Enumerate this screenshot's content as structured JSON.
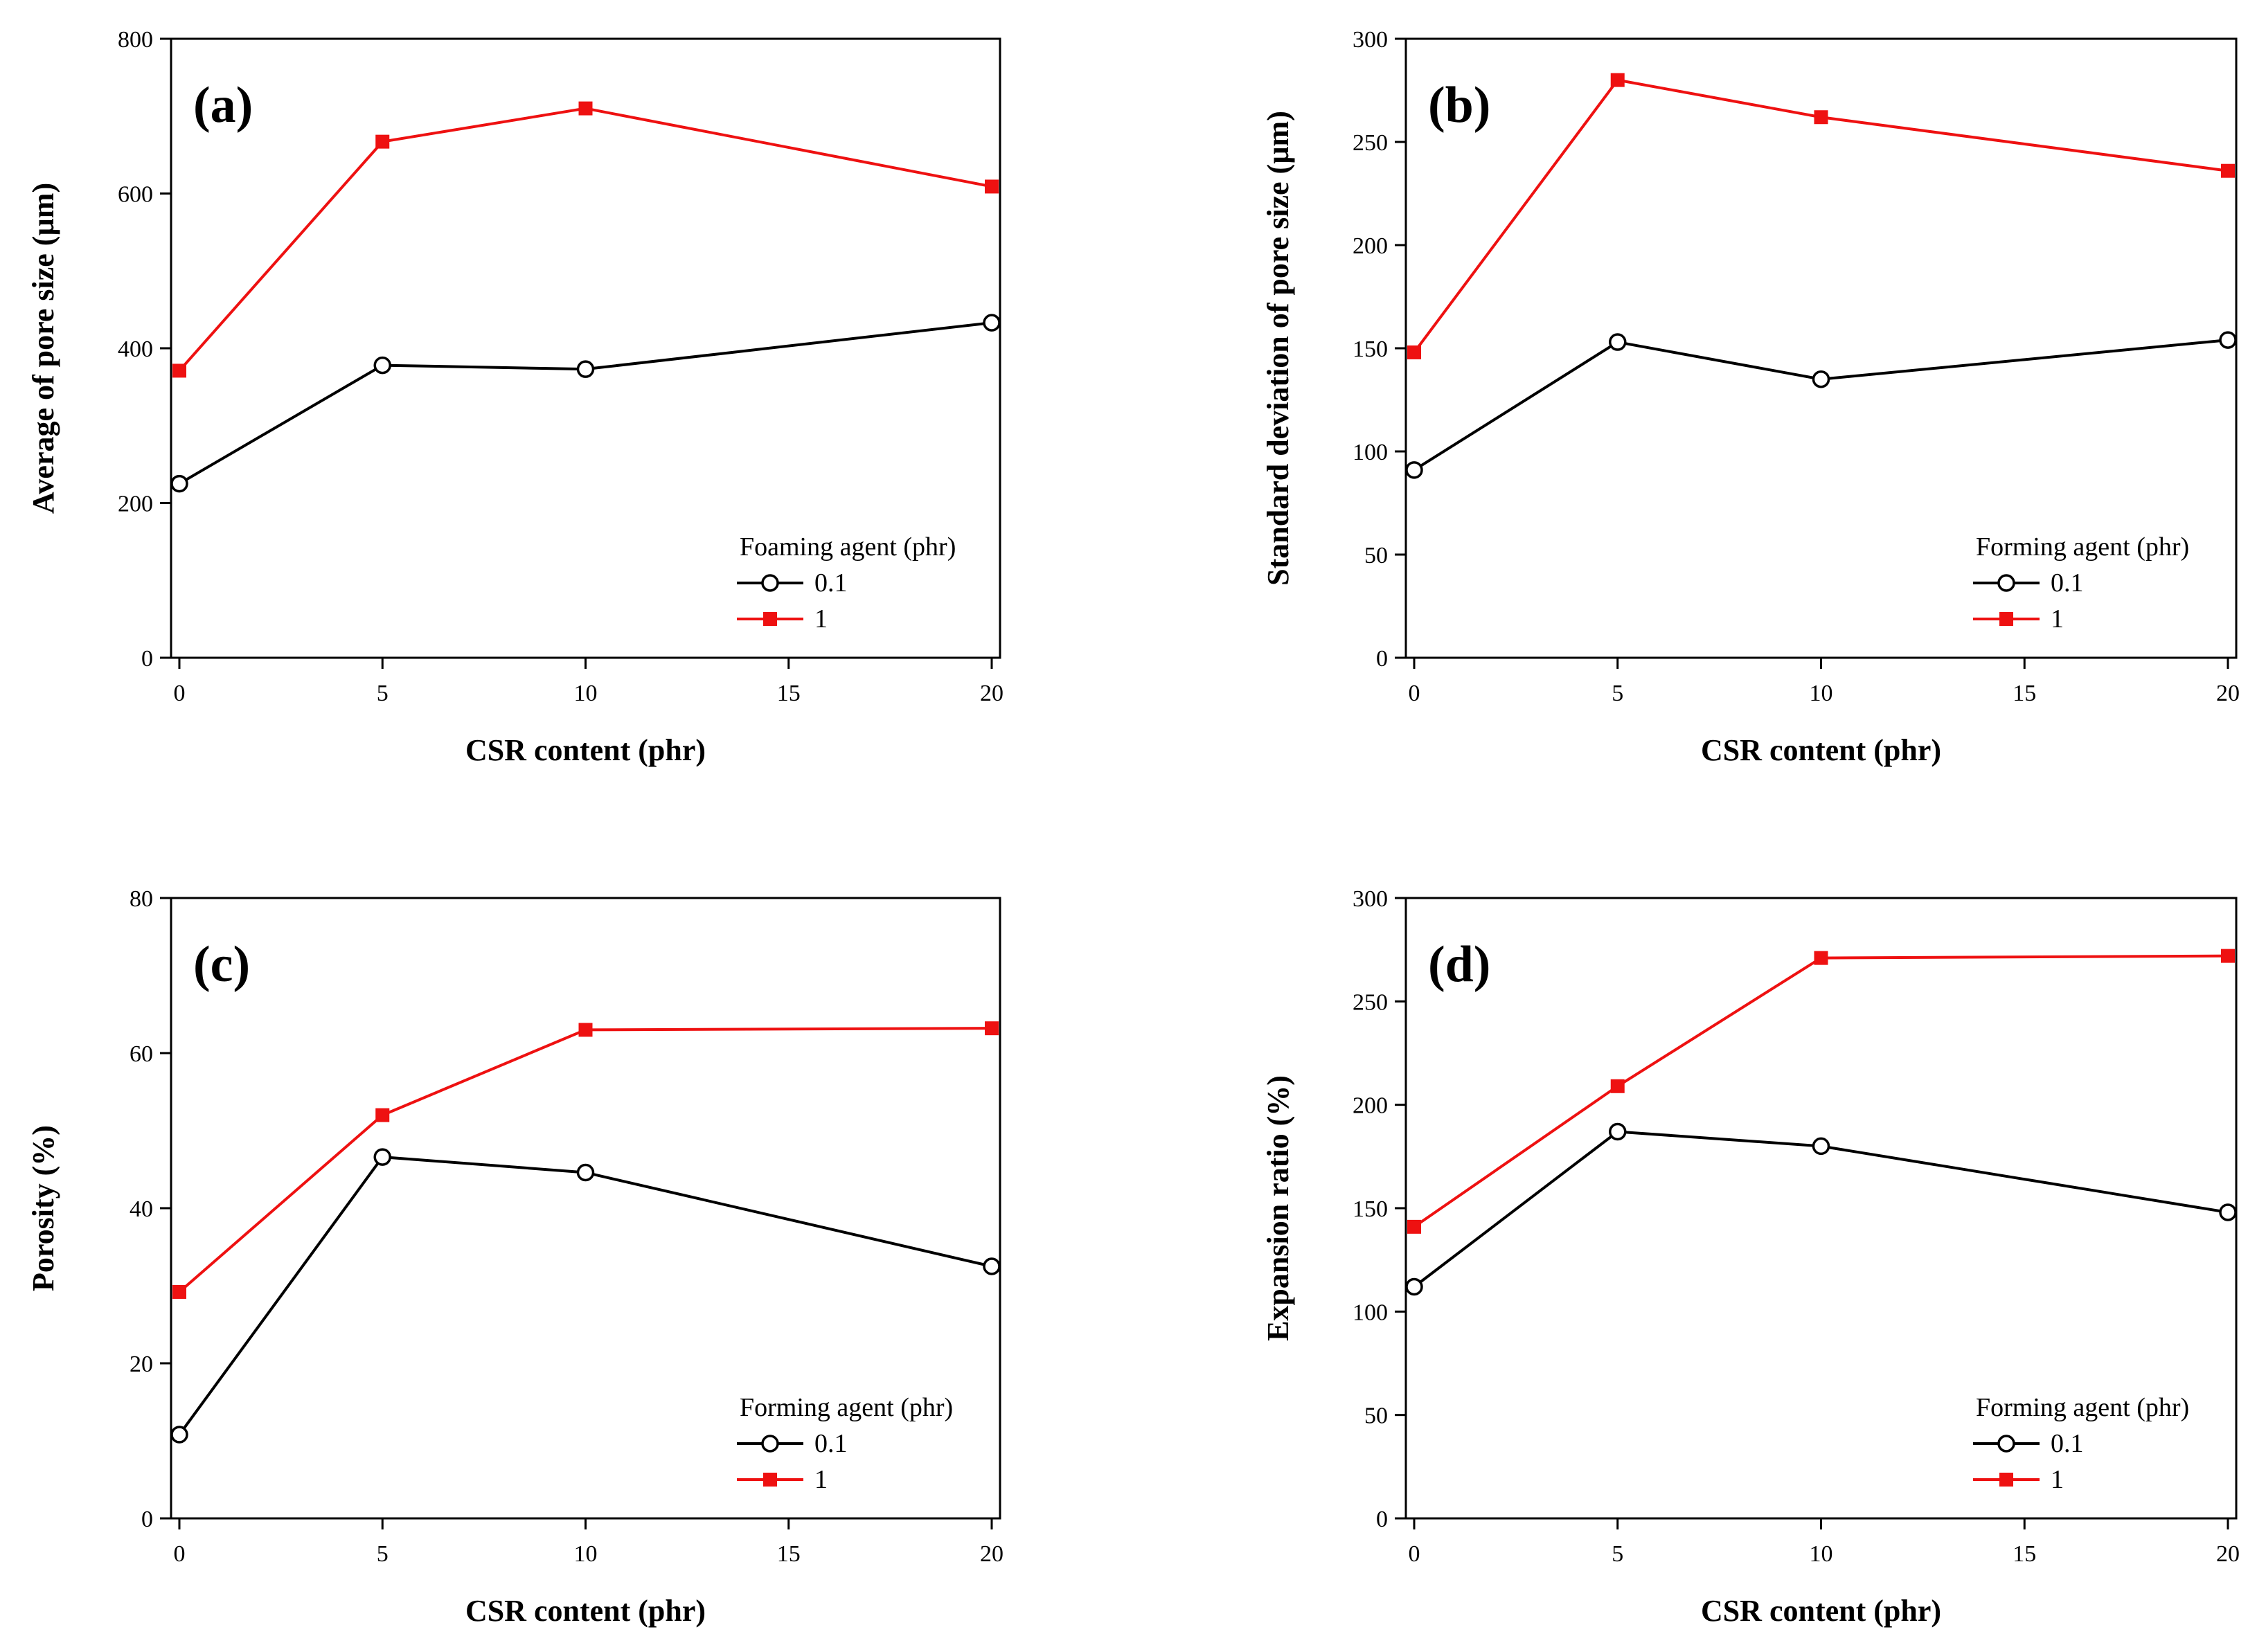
{
  "chart_data": [
    {
      "type": "line",
      "panel_label": "(a)",
      "xlabel": "CSR content (phr)",
      "ylabel": "Average of pore size (µm)",
      "xlim": [
        0,
        20
      ],
      "ylim": [
        0,
        800
      ],
      "xticks": [
        0,
        5,
        10,
        15,
        20
      ],
      "yticks": [
        0,
        200,
        400,
        600,
        800
      ],
      "x": [
        0,
        5,
        10,
        20
      ],
      "legend_title": "Foaming agent (phr)",
      "legend_position": "bottom-right",
      "series": [
        {
          "name": "0.1",
          "marker": "open-circle",
          "color": "#000000",
          "values": [
            225,
            378,
            373,
            433
          ]
        },
        {
          "name": "1",
          "marker": "filled-square",
          "color": "#ee1111",
          "values": [
            371,
            667,
            710,
            609
          ]
        }
      ]
    },
    {
      "type": "line",
      "panel_label": "(b)",
      "xlabel": "CSR content (phr)",
      "ylabel": "Standard deviation of pore size (µm)",
      "xlim": [
        0,
        20
      ],
      "ylim": [
        0,
        300
      ],
      "xticks": [
        0,
        5,
        10,
        15,
        20
      ],
      "yticks": [
        0,
        50,
        100,
        150,
        200,
        250,
        300
      ],
      "x": [
        0,
        5,
        10,
        20
      ],
      "legend_title": "Forming agent (phr)",
      "legend_position": "bottom-right",
      "series": [
        {
          "name": "0.1",
          "marker": "open-circle",
          "color": "#000000",
          "values": [
            91,
            153,
            135,
            154
          ]
        },
        {
          "name": "1",
          "marker": "filled-square",
          "color": "#ee1111",
          "values": [
            148,
            280,
            262,
            236
          ]
        }
      ]
    },
    {
      "type": "line",
      "panel_label": "(c)",
      "xlabel": "CSR content (phr)",
      "ylabel": "Porosity (%)",
      "xlim": [
        0,
        20
      ],
      "ylim": [
        0,
        80
      ],
      "xticks": [
        0,
        5,
        10,
        15,
        20
      ],
      "yticks": [
        0,
        20,
        40,
        60,
        80
      ],
      "x": [
        0,
        5,
        10,
        20
      ],
      "legend_title": "Forming agent (phr)",
      "legend_position": "bottom-right",
      "series": [
        {
          "name": "0.1",
          "marker": "open-circle",
          "color": "#000000",
          "values": [
            10.8,
            46.6,
            44.6,
            32.5
          ]
        },
        {
          "name": "1",
          "marker": "filled-square",
          "color": "#ee1111",
          "values": [
            29.2,
            52.0,
            63.0,
            63.2
          ]
        }
      ]
    },
    {
      "type": "line",
      "panel_label": "(d)",
      "xlabel": "CSR content (phr)",
      "ylabel": "Expansion ratio (%)",
      "xlim": [
        0,
        20
      ],
      "ylim": [
        0,
        300
      ],
      "xticks": [
        0,
        5,
        10,
        15,
        20
      ],
      "yticks": [
        0,
        50,
        100,
        150,
        200,
        250,
        300
      ],
      "x": [
        0,
        5,
        10,
        20
      ],
      "legend_title": "Forming agent (phr)",
      "legend_position": "bottom-right",
      "series": [
        {
          "name": "0.1",
          "marker": "open-circle",
          "color": "#000000",
          "values": [
            112,
            187,
            180,
            148
          ]
        },
        {
          "name": "1",
          "marker": "filled-square",
          "color": "#ee1111",
          "values": [
            141,
            209,
            271,
            272
          ]
        }
      ]
    }
  ]
}
